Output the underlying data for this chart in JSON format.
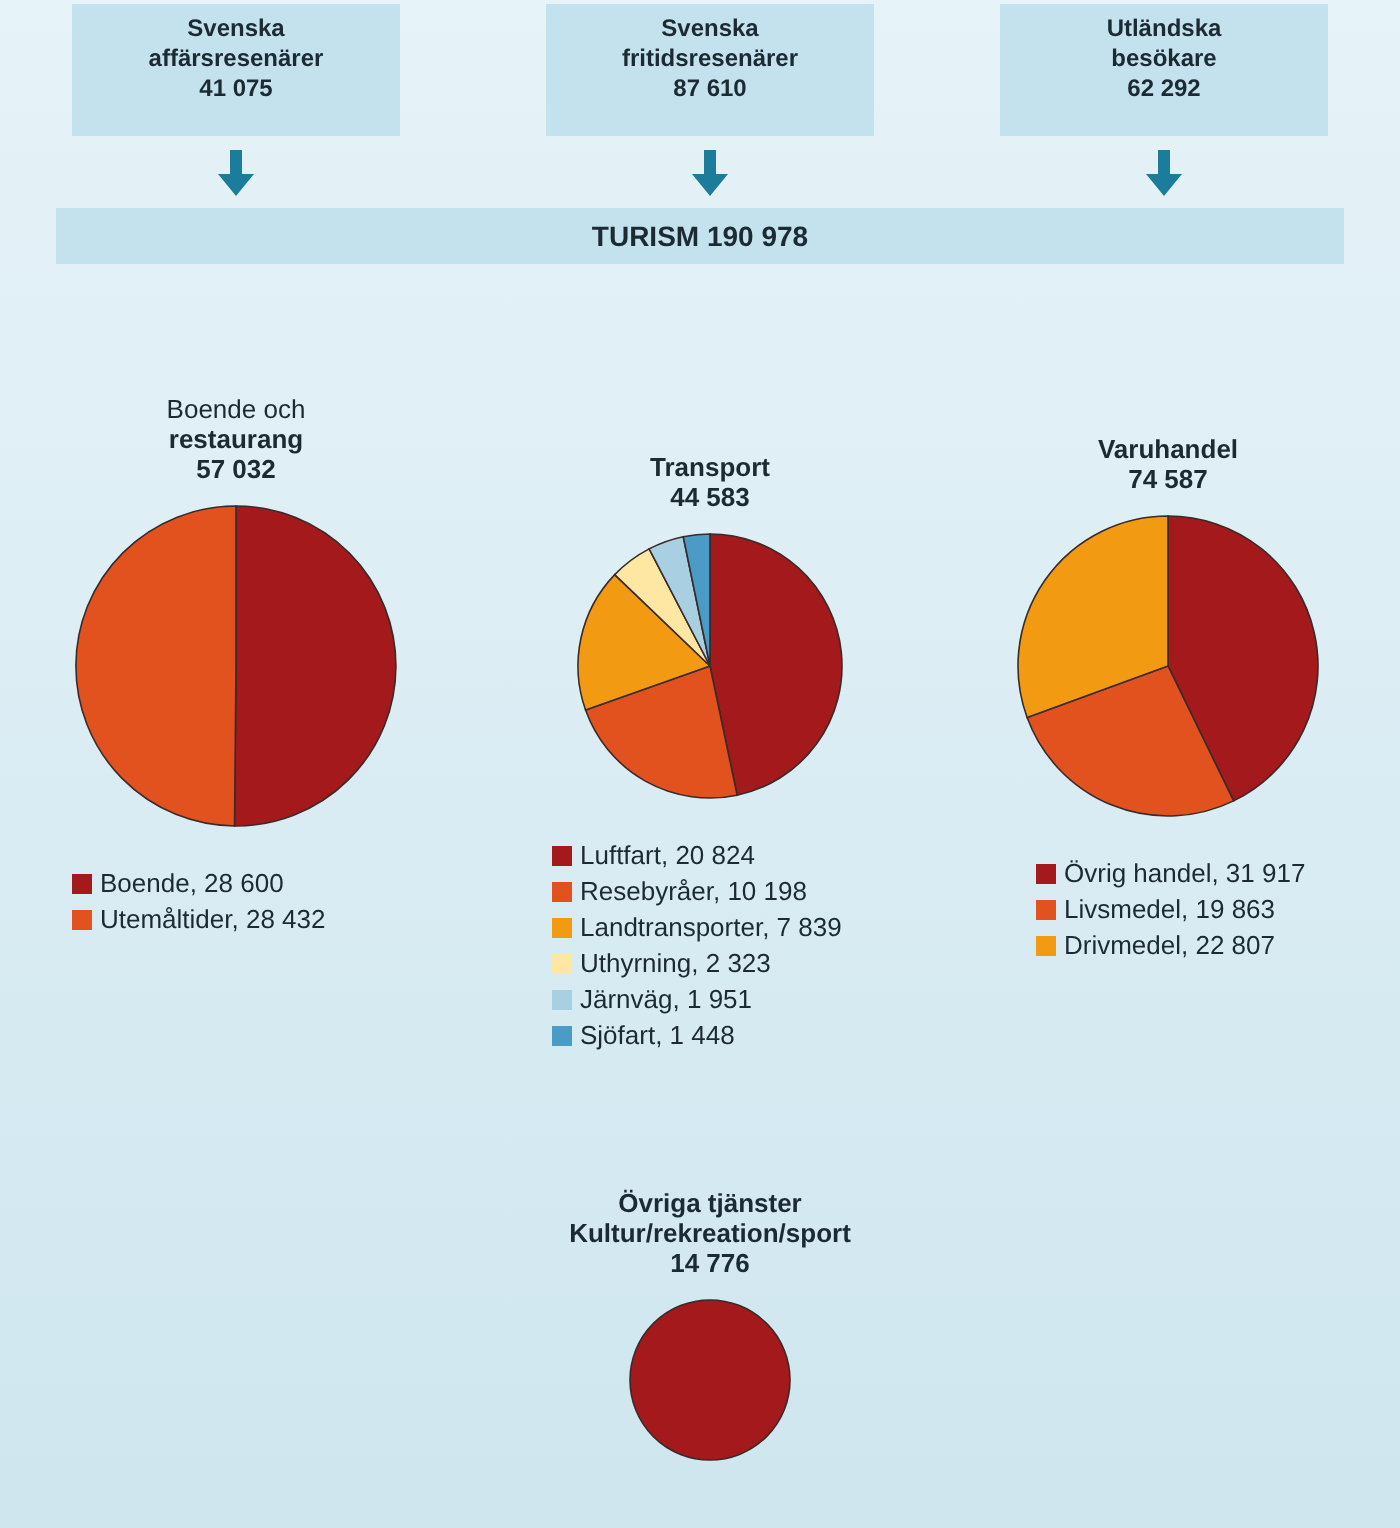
{
  "chart_data": [
    {
      "type": "other",
      "title": "TURISM 190 978",
      "categories": [
        "Svenska affärsresenärer",
        "Svenska fritidsresenärer",
        "Utländska besökare"
      ],
      "values": [
        41075,
        87610,
        62292
      ],
      "value_labels": [
        "41 075",
        "87 610",
        "62 292"
      ]
    },
    {
      "type": "pie",
      "title": "Boende och\nrestaurang",
      "annotations": [
        "57 032"
      ],
      "categories": [
        "Boende",
        "Utemåltider"
      ],
      "values": [
        28600,
        28432
      ],
      "value_labels": [
        "28 600",
        "28 432"
      ],
      "colors": [
        "#a3191c",
        "#e2521f"
      ],
      "legend": "bottom"
    },
    {
      "type": "pie",
      "title": "Transport",
      "annotations": [
        "44 583"
      ],
      "categories": [
        "Luftfart",
        "Resebyråer",
        "Landtransporter",
        "Uthyrning",
        "Järnväg",
        "Sjöfart"
      ],
      "values": [
        20824,
        10198,
        7839,
        2323,
        1951,
        1448
      ],
      "value_labels": [
        "20 824",
        "10 198",
        "7 839",
        "2 323",
        "1 951",
        "1 448"
      ],
      "colors": [
        "#a3191c",
        "#e2521f",
        "#f29a12",
        "#fde7a2",
        "#a9cfe2",
        "#4a9bc6"
      ],
      "legend": "bottom"
    },
    {
      "type": "pie",
      "title": "Varuhandel",
      "annotations": [
        "74 587"
      ],
      "categories": [
        "Övrig handel",
        "Livsmedel",
        "Drivmedel"
      ],
      "values": [
        31917,
        19863,
        22807
      ],
      "value_labels": [
        "31 917",
        "19 863",
        "22 807"
      ],
      "colors": [
        "#a3191c",
        "#e2521f",
        "#f29a12"
      ],
      "legend": "bottom"
    },
    {
      "type": "pie",
      "title": "Övriga tjänster\nKultur/rekreation/sport",
      "annotations": [
        "14 776"
      ],
      "categories": [
        null
      ],
      "values": [
        100
      ],
      "colors": [
        "#a3191c"
      ]
    }
  ]
}
